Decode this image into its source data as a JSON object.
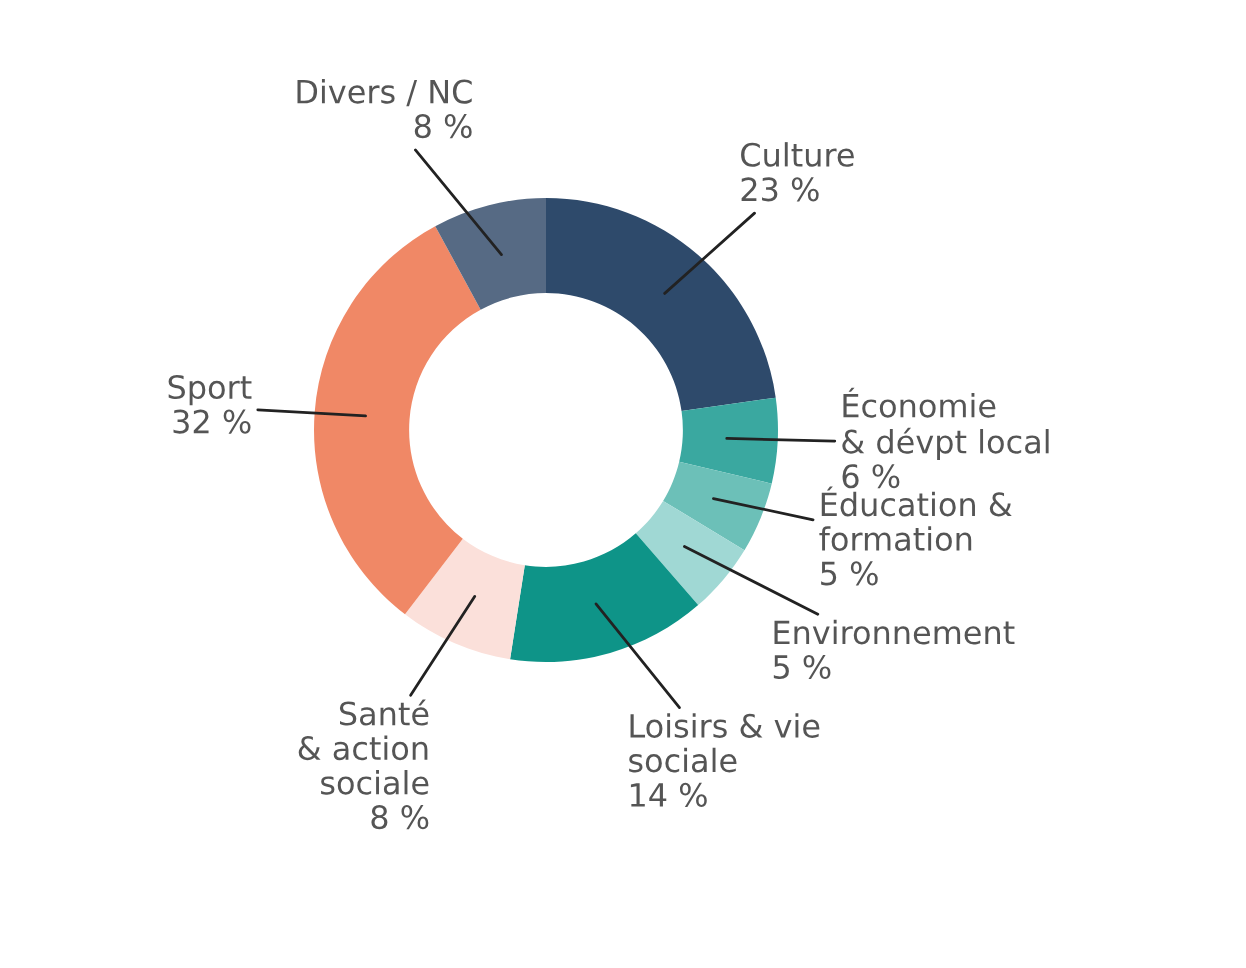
{
  "chart_data": {
    "type": "donut",
    "categories": [
      "Culture",
      "Économie\n& dévpt local",
      "Éducation &\nformation",
      "Environnement",
      "Loisirs & vie\nsociale",
      "Santé\n& action\nsociale",
      "Sport",
      "Divers / NC"
    ],
    "values": [
      23,
      6,
      5,
      5,
      14,
      8,
      32,
      8
    ],
    "value_labels": [
      "23 %",
      "6 %",
      "5 %",
      "5 %",
      "14 %",
      "8 %",
      "32 %",
      "8 %"
    ],
    "colors": [
      "#2e4a6b",
      "#3aa8a0",
      "#6cc0b8",
      "#a0d8d4",
      "#0e9488",
      "#fbe0da",
      "#f08866",
      "#566a84"
    ]
  }
}
